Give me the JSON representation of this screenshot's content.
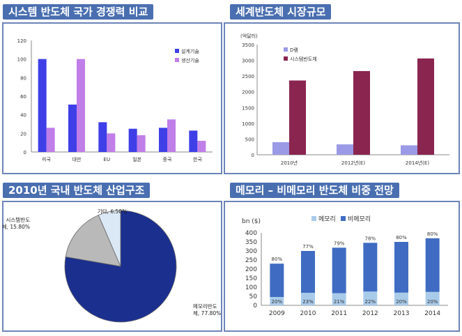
{
  "headers": {
    "p1": "시스템 반도체 국가 경쟁력 비교",
    "p2": "세계반도체 시장규모",
    "p3": "2010년 국내 반도체 산업구조",
    "p4": "메모리 – 비메모리 반도체 비중 전망"
  },
  "colors": {
    "blue": "#3f3fe8",
    "violet": "#c07ee8",
    "lilac": "#9a9ae6",
    "maroon": "#8a2550",
    "navy": "#1b2f8f",
    "gray": "#b9b9b9",
    "pale": "#dbe8f5",
    "mid": "#3f6cc2",
    "light": "#a9cbea"
  },
  "chart_data": [
    {
      "type": "bar",
      "title": "시스템 반도체 국가 경쟁력 비교",
      "categories": [
        "미국",
        "대만",
        "EU",
        "일본",
        "중국",
        "한국"
      ],
      "series": [
        {
          "name": "설계기술",
          "values": [
            100,
            51,
            32,
            25,
            26,
            23
          ]
        },
        {
          "name": "생산기술",
          "values": [
            26,
            100,
            20,
            18,
            35,
            12
          ]
        }
      ],
      "ylim": [
        0,
        120
      ],
      "yticks": [
        0,
        20,
        40,
        60,
        80,
        100,
        120
      ],
      "legend": "top-right"
    },
    {
      "type": "bar",
      "title": "세계반도체 시장규모",
      "ylabel": "(억달러)",
      "categories": [
        "2010년",
        "2012년(E)",
        "2014년(E)"
      ],
      "series": [
        {
          "name": "D램",
          "values": [
            400,
            330,
            300
          ]
        },
        {
          "name": "시스템반도체",
          "values": [
            2360,
            2660,
            3060
          ]
        }
      ],
      "ylim": [
        0,
        3500
      ],
      "yticks": [
        "0",
        "500",
        "1000",
        "1500",
        "2000",
        "2500",
        "3000",
        "3500"
      ],
      "legend": "top-left"
    },
    {
      "type": "pie",
      "title": "2010년 국내 반도체 산업구조",
      "slices": [
        {
          "label": "메모리반도\n체, 77.80%",
          "value": 77.8
        },
        {
          "label": "시스템반도\n체, 15.80%",
          "value": 15.8
        },
        {
          "label": "기타, 6.50%",
          "value": 6.5
        }
      ]
    },
    {
      "type": "bar",
      "stacked": true,
      "title": "메모리 – 비메모리 반도체 비중 전망",
      "ylabel": "bn ($)",
      "categories": [
        "2009",
        "2010",
        "2011",
        "2012",
        "2013",
        "2014"
      ],
      "series": [
        {
          "name": "메모리",
          "values": [
            46,
            69,
            67,
            76,
            70,
            74
          ]
        },
        {
          "name": "비메모리",
          "values": [
            184,
            231,
            251,
            269,
            280,
            296
          ]
        }
      ],
      "segment_labels": {
        "메모리": [
          "20%",
          "23%",
          "21%",
          "22%",
          "20%",
          "20%"
        ],
        "비메모리": [
          "80%",
          "77%",
          "79%",
          "78%",
          "80%",
          "80%"
        ]
      },
      "ylim": [
        0,
        400
      ],
      "yticks": [
        0,
        50,
        100,
        150,
        200,
        250,
        300,
        350,
        400
      ],
      "legend": "top"
    }
  ]
}
